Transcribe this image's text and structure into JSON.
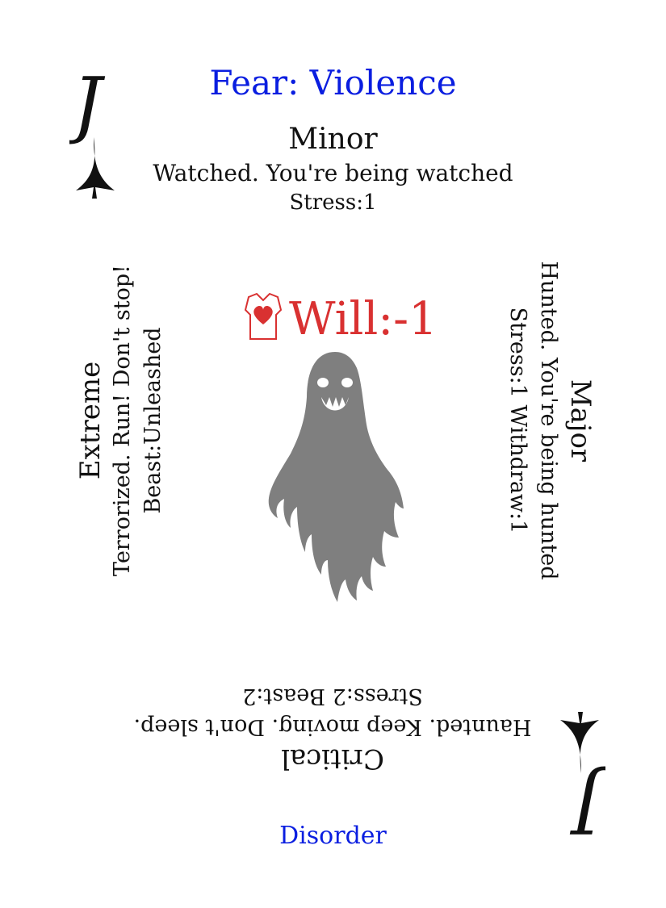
{
  "card": {
    "title": "Fear: Violence",
    "corner_letter": "J",
    "minor": {
      "label": "Minor",
      "text": "Watched. You're being watched",
      "stats": "Stress:1"
    },
    "extreme": {
      "label": "Extreme",
      "text": "Terrorized. Run! Don't stop!",
      "stats": "Beast:Unleashed"
    },
    "major": {
      "label": "Major",
      "text": "Hunted. You're being hunted",
      "stats": "Stress:1 Withdraw:1"
    },
    "critical": {
      "label": "Critical",
      "text": "Haunted. Keep moving. Don't sleep.",
      "stats": "Stress:2 Beast:2"
    },
    "attribute": {
      "text": "Will:-1",
      "icon": "torso-heart-icon"
    },
    "art": {
      "icon": "ghost-icon"
    },
    "footer": "Disorder"
  },
  "colors": {
    "title": "#0a1ee0",
    "attribute": "#d93131",
    "ghost": "#7f7f7f",
    "text": "#111111"
  }
}
